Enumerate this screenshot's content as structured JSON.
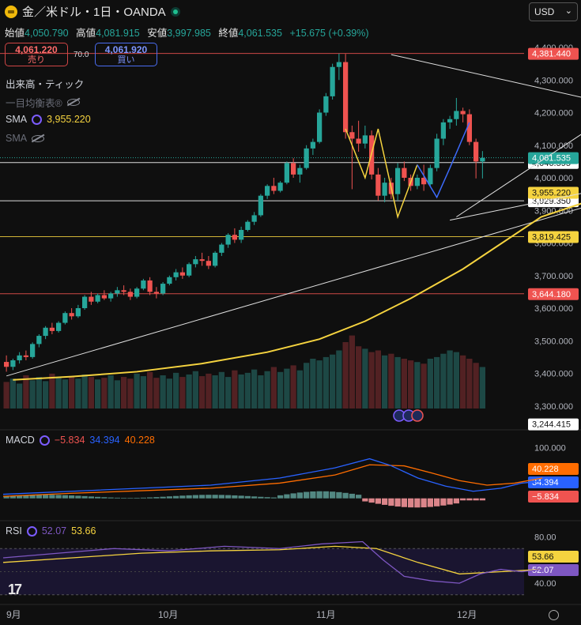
{
  "header": {
    "title": "金／米ドル・1日・OANDA"
  },
  "currency_select": {
    "value": "USD"
  },
  "ohlc": {
    "open_label": "始値",
    "open": "4,050.790",
    "high_label": "高値",
    "high": "4,081.915",
    "low_label": "安値",
    "low": "3,997.985",
    "close_label": "終値",
    "close": "4,061.535",
    "change": "+15.675 (+0.39%)"
  },
  "trade": {
    "sell_price": "4,061.220",
    "sell_label": "売り",
    "spread": "70.0",
    "buy_price": "4,061.920",
    "buy_label": "買い"
  },
  "indicators": {
    "volume": "出来高・ティック",
    "ichimoku": "一目均衡表®",
    "sma1_label": "SMA",
    "sma1_value": "3,955.220",
    "sma2_label": "SMA"
  },
  "macd_legend": {
    "label": "MACD",
    "hist": "−5.834",
    "macd": "34.394",
    "signal": "40.228"
  },
  "rsi_legend": {
    "label": "RSI",
    "rsi": "52.07",
    "ma": "53.66"
  },
  "colors": {
    "up": "#26a69a",
    "down": "#ef5350",
    "sma": "#f5d33f",
    "macd": "#2962ff",
    "signal": "#ff6d00",
    "rsi": "#7e57c2",
    "rsi_ma": "#f5d33f"
  },
  "chart_data": {
    "type": "candlestick",
    "price_axis": {
      "range": [
        3280,
        4400
      ],
      "ticks": [
        "4,400.000",
        "4,300.000",
        "4,200.000",
        "4,100.000",
        "4,000.000",
        "3,900.000",
        "3,800.000",
        "3,700.000",
        "3,600.000",
        "3,500.000",
        "3,400.000",
        "3,300.000"
      ]
    },
    "time_axis": {
      "labels": [
        "9月",
        "10月",
        "11月",
        "12月"
      ]
    },
    "horizontal_lines": [
      {
        "price": 4381.44,
        "label": "4,381.440",
        "color": "#ef5350"
      },
      {
        "price": 4046.595,
        "label": "4,046.595",
        "color": "#ffffff"
      },
      {
        "price": 3929.35,
        "label": "3,929.350",
        "color": "#ffffff"
      },
      {
        "price": 3819.425,
        "label": "3,819.425",
        "color": "#f5d33f"
      },
      {
        "price": 3644.18,
        "label": "3,644.180",
        "color": "#ef5350"
      }
    ],
    "price_labels": [
      {
        "price": 4061.535,
        "label": "4,061.535",
        "color": "#26a69a"
      },
      {
        "price": 3955.22,
        "label": "3,955.220",
        "color": "#f5d33f"
      },
      {
        "price": 3244.415,
        "label": "3,244.415",
        "color": "#ffffff"
      }
    ],
    "sma_points": [
      [
        1,
        3380
      ],
      [
        10,
        3390
      ],
      [
        20,
        3405
      ],
      [
        30,
        3430
      ],
      [
        40,
        3465
      ],
      [
        48,
        3505
      ],
      [
        55,
        3560
      ],
      [
        62,
        3630
      ],
      [
        70,
        3720
      ],
      [
        76,
        3800
      ],
      [
        82,
        3880
      ],
      [
        88,
        3920
      ],
      [
        93,
        3955
      ]
    ],
    "trendlines": [
      {
        "from": [
          0,
          3392
        ],
        "to": [
          122,
          4105
        ],
        "color": "#e0e0e0"
      },
      {
        "from": [
          59,
          4378
        ],
        "to": [
          122,
          4095
        ],
        "color": "#e0e0e0"
      },
      {
        "from": [
          68,
          3870
        ],
        "to": [
          122,
          4090
        ],
        "color": "#e0e0e0"
      },
      {
        "from": [
          69,
          3880
        ],
        "to": [
          100,
          4290
        ],
        "color": "#e0e0e0"
      }
    ],
    "ohlc_rows": [
      [
        3435,
        3455,
        3405,
        3420
      ],
      [
        3420,
        3445,
        3410,
        3440
      ],
      [
        3440,
        3465,
        3430,
        3455
      ],
      [
        3455,
        3470,
        3440,
        3450
      ],
      [
        3450,
        3495,
        3445,
        3490
      ],
      [
        3490,
        3520,
        3480,
        3515
      ],
      [
        3515,
        3545,
        3505,
        3540
      ],
      [
        3540,
        3555,
        3520,
        3530
      ],
      [
        3530,
        3560,
        3525,
        3555
      ],
      [
        3555,
        3590,
        3550,
        3585
      ],
      [
        3585,
        3600,
        3565,
        3575
      ],
      [
        3575,
        3610,
        3570,
        3600
      ],
      [
        3600,
        3640,
        3595,
        3635
      ],
      [
        3635,
        3650,
        3610,
        3620
      ],
      [
        3620,
        3645,
        3615,
        3640
      ],
      [
        3640,
        3655,
        3625,
        3630
      ],
      [
        3630,
        3650,
        3620,
        3645
      ],
      [
        3645,
        3665,
        3635,
        3655
      ],
      [
        3655,
        3670,
        3640,
        3650
      ],
      [
        3650,
        3660,
        3625,
        3635
      ],
      [
        3635,
        3665,
        3630,
        3660
      ],
      [
        3660,
        3690,
        3655,
        3685
      ],
      [
        3685,
        3695,
        3640,
        3650
      ],
      [
        3650,
        3665,
        3630,
        3645
      ],
      [
        3645,
        3680,
        3640,
        3675
      ],
      [
        3675,
        3700,
        3670,
        3695
      ],
      [
        3695,
        3720,
        3685,
        3710
      ],
      [
        3710,
        3725,
        3690,
        3700
      ],
      [
        3700,
        3740,
        3695,
        3735
      ],
      [
        3735,
        3760,
        3725,
        3750
      ],
      [
        3750,
        3770,
        3730,
        3745
      ],
      [
        3745,
        3760,
        3720,
        3730
      ],
      [
        3730,
        3775,
        3725,
        3770
      ],
      [
        3770,
        3800,
        3760,
        3795
      ],
      [
        3795,
        3830,
        3785,
        3825
      ],
      [
        3825,
        3845,
        3800,
        3810
      ],
      [
        3810,
        3850,
        3800,
        3840
      ],
      [
        3840,
        3870,
        3835,
        3865
      ],
      [
        3865,
        3895,
        3855,
        3885
      ],
      [
        3885,
        3950,
        3880,
        3945
      ],
      [
        3945,
        3980,
        3935,
        3975
      ],
      [
        3975,
        4000,
        3950,
        3960
      ],
      [
        3960,
        3990,
        3955,
        3985
      ],
      [
        3985,
        4050,
        3980,
        4045
      ],
      [
        4045,
        4060,
        4000,
        4010
      ],
      [
        4010,
        4040,
        3985,
        4030
      ],
      [
        4030,
        4100,
        4025,
        4090
      ],
      [
        4090,
        4120,
        4070,
        4110
      ],
      [
        4110,
        4210,
        4105,
        4200
      ],
      [
        4200,
        4260,
        4190,
        4250
      ],
      [
        4250,
        4350,
        4240,
        4340
      ],
      [
        4340,
        4381,
        4300,
        4355
      ],
      [
        4355,
        4380,
        4120,
        4140
      ],
      [
        4140,
        4160,
        3965,
        4120
      ],
      [
        4120,
        4175,
        4080,
        4105
      ],
      [
        4105,
        4160,
        4090,
        4130
      ],
      [
        4130,
        4145,
        3995,
        4010
      ],
      [
        4010,
        4030,
        3930,
        3945
      ],
      [
        3945,
        4000,
        3925,
        3985
      ],
      [
        3985,
        4000,
        3935,
        3950
      ],
      [
        3950,
        4045,
        3930,
        4030
      ],
      [
        4030,
        4050,
        3990,
        4000
      ],
      [
        4000,
        4010,
        3960,
        3975
      ],
      [
        3975,
        4010,
        3965,
        4000
      ],
      [
        4000,
        4040,
        3960,
        3980
      ],
      [
        3980,
        4040,
        3975,
        4030
      ],
      [
        4030,
        4135,
        4020,
        4120
      ],
      [
        4120,
        4180,
        4100,
        4170
      ],
      [
        4170,
        4190,
        4150,
        4180
      ],
      [
        4180,
        4245,
        4160,
        4205
      ],
      [
        4205,
        4215,
        4170,
        4195
      ],
      [
        4195,
        4210,
        4100,
        4110
      ],
      [
        4110,
        4120,
        3998,
        4050
      ],
      [
        4050,
        4082,
        3998,
        4061
      ]
    ],
    "volume": [
      32,
      36,
      30,
      40,
      34,
      38,
      33,
      42,
      37,
      35,
      39,
      36,
      41,
      38,
      35,
      37,
      40,
      34,
      38,
      36,
      42,
      39,
      44,
      37,
      40,
      36,
      43,
      38,
      41,
      45,
      39,
      42,
      40,
      44,
      38,
      46,
      41,
      43,
      47,
      40,
      45,
      50,
      44,
      48,
      52,
      46,
      55,
      60,
      58,
      62,
      65,
      70,
      80,
      88,
      75,
      72,
      68,
      70,
      64,
      66,
      62,
      60,
      58,
      56,
      54,
      60,
      62,
      66,
      70,
      68,
      64,
      60,
      55,
      50
    ],
    "macd": {
      "legend": "MACD",
      "axis_ticks": [
        "100.000"
      ],
      "labels": [
        "40.228",
        "34.394",
        "−5.834"
      ]
    },
    "rsi": {
      "legend": "RSI",
      "axis_ticks": [
        "80.00",
        "40.00"
      ],
      "labels": [
        "53.66",
        "52.07"
      ]
    }
  }
}
